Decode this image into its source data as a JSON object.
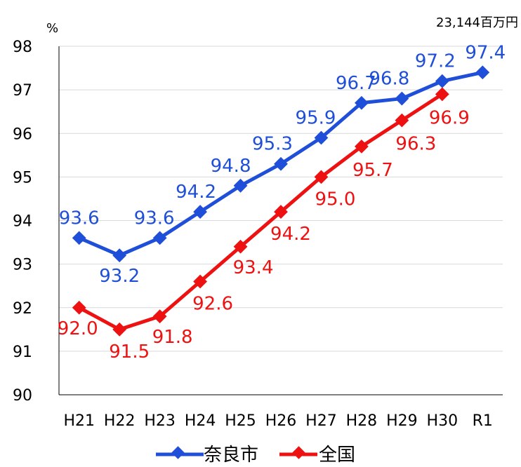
{
  "chart_data": {
    "type": "line",
    "categories": [
      "H21",
      "H22",
      "H23",
      "H24",
      "H25",
      "H26",
      "H27",
      "H28",
      "H29",
      "H30",
      "R1"
    ],
    "series": [
      {
        "name": "奈良市",
        "color": "#1f4fd8",
        "label_color": "#1f4fd8",
        "values": [
          93.6,
          93.2,
          93.6,
          94.2,
          94.8,
          95.3,
          95.9,
          96.7,
          96.8,
          97.2,
          97.4
        ],
        "labels": [
          "93.6",
          "93.2",
          "93.6",
          "94.2",
          "94.8",
          "95.3",
          "95.9",
          "96.7",
          "96.8",
          "97.2",
          "97.4"
        ]
      },
      {
        "name": "全国",
        "color": "#ee1111",
        "label_color": "#ee1111",
        "values": [
          92.0,
          91.5,
          91.8,
          92.6,
          93.4,
          94.2,
          95.0,
          95.7,
          96.3,
          96.9,
          null
        ],
        "labels": [
          "92.0",
          "91.5",
          "91.8",
          "92.6",
          "93.4",
          "94.2",
          "95.0",
          "95.7",
          "96.3",
          "96.9",
          ""
        ]
      }
    ],
    "ylim": [
      90,
      98
    ],
    "yticks": [
      "90",
      "91",
      "92",
      "93",
      "94",
      "95",
      "96",
      "97",
      "98"
    ],
    "yunit": "%",
    "note": "23,144百万円",
    "grid": true,
    "legend_position": "bottom-center"
  }
}
